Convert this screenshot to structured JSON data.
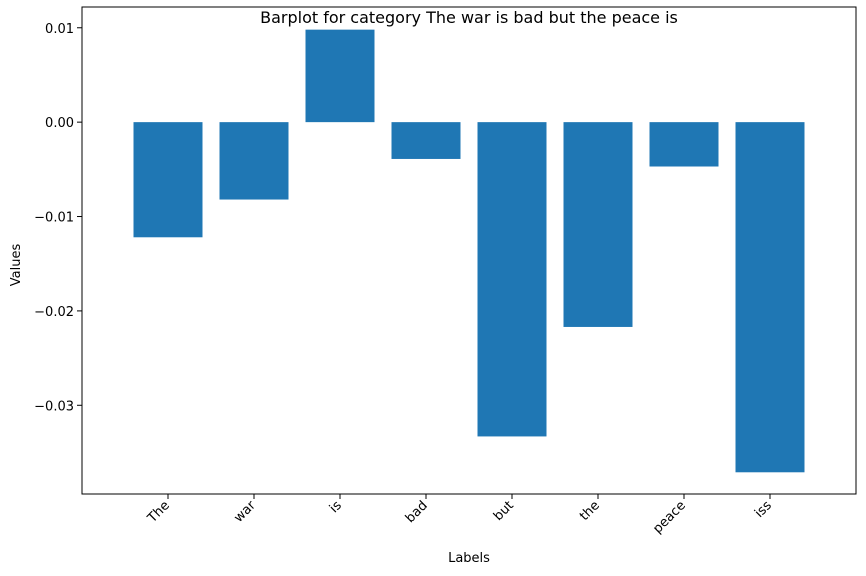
{
  "chart_data": {
    "type": "bar",
    "title": "Barplot for category The war is bad but the peace is",
    "xlabel": "Labels",
    "ylabel": "Values",
    "categories": [
      "The",
      "war",
      "is",
      "bad",
      "but",
      "the",
      "peace",
      "iss"
    ],
    "values": [
      -0.0122,
      -0.0082,
      0.0098,
      -0.0039,
      -0.0333,
      -0.0217,
      -0.0047,
      -0.0371
    ],
    "yticks": [
      0.01,
      0.0,
      -0.01,
      -0.02,
      -0.03
    ],
    "ytick_labels": [
      "0.01",
      "0.00",
      "−0.01",
      "−0.02",
      "−0.03"
    ],
    "ylim": [
      -0.0394,
      0.0122
    ],
    "bar_color": "#1f77b4",
    "grid": false,
    "xtick_rotation": "45deg"
  }
}
